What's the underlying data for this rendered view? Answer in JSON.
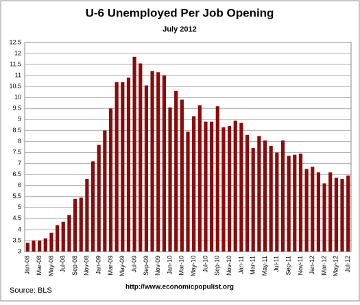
{
  "chart_data": {
    "type": "bar",
    "title": "U-6 Unemployed Per Job Opening",
    "subtitle": "July 2012",
    "source": "Source: BLS",
    "url": "http://www.economicpopulist.org",
    "categories": [
      "Jan-08",
      null,
      "Mar-08",
      null,
      "May-08",
      null,
      "Jul-08",
      null,
      "Sep-08",
      null,
      "Nov-08",
      null,
      "Jan-09",
      null,
      "Mar-09",
      null,
      "May-09",
      null,
      "Jul-09",
      null,
      "Sep-09",
      null,
      "Nov-09",
      null,
      "Jan-10",
      null,
      "Mar-10",
      null,
      "May-10",
      null,
      "Jul-10",
      null,
      "Sep-10",
      null,
      "Nov-10",
      null,
      "Jan-11",
      null,
      "Mar-11",
      null,
      "May-11",
      null,
      "Jul-11",
      null,
      "Sep-11",
      null,
      "Nov-11",
      null,
      "Jan-12",
      null,
      "Mar-12",
      null,
      "May-12",
      null,
      "Jul-12"
    ],
    "values": [
      3.4,
      3.5,
      3.5,
      3.6,
      3.85,
      4.2,
      4.35,
      4.65,
      5.4,
      5.45,
      6.3,
      7.1,
      7.85,
      8.5,
      9.5,
      10.7,
      10.7,
      10.9,
      11.85,
      11.55,
      10.55,
      11.2,
      11.15,
      11.0,
      9.55,
      10.3,
      9.9,
      8.45,
      9.15,
      9.65,
      8.9,
      8.9,
      9.6,
      8.65,
      8.7,
      8.95,
      8.85,
      8.3,
      7.7,
      8.25,
      8.05,
      7.8,
      7.5,
      8.05,
      7.35,
      7.4,
      7.45,
      6.75,
      6.85,
      6.6,
      6.1,
      6.6,
      6.35,
      6.3,
      6.45
    ],
    "color": "#8b0a0a",
    "ylim": [
      3,
      12.5
    ],
    "yticks": [
      3,
      3.5,
      4,
      4.5,
      5,
      5.5,
      6,
      6.5,
      7,
      7.5,
      8,
      8.5,
      9,
      9.5,
      10,
      10.5,
      11,
      11.5,
      12,
      12.5
    ],
    "grid": true
  }
}
